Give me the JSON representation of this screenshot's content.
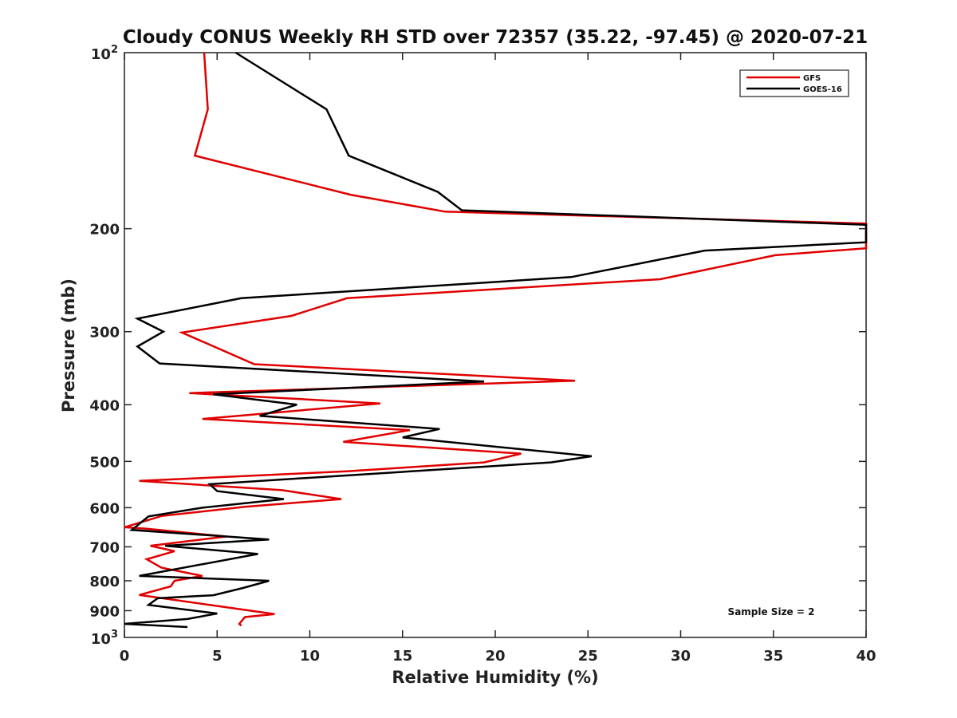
{
  "chart_data": {
    "type": "line",
    "title": "Cloudy CONUS Weekly RH STD over 72357 (35.22, -97.45) @ 2020-07-21",
    "xlabel": "Relative Humidity (%)",
    "ylabel": "Pressure (mb)",
    "xlim": [
      0,
      40
    ],
    "ylim": [
      100,
      1000
    ],
    "y_scale": "log",
    "y_reversed": true,
    "x_ticks": [
      0,
      5,
      10,
      15,
      20,
      25,
      30,
      35,
      40
    ],
    "x_tick_labels": [
      "0",
      "5",
      "10",
      "15",
      "20",
      "25",
      "30",
      "35",
      "40"
    ],
    "y_ticks": [
      200,
      300,
      400,
      500,
      600,
      700,
      800,
      900
    ],
    "y_tick_labels": [
      "200",
      "300",
      "400",
      "500",
      "600",
      "700",
      "800",
      "900"
    ],
    "y_decade_labels": [
      {
        "value": 100,
        "base": "10",
        "exp": "2"
      },
      {
        "value": 1000,
        "base": "10",
        "exp": "3"
      }
    ],
    "grid": false,
    "legend_position": "top-right",
    "annotation": "Sample Size = 2",
    "series": [
      {
        "name": "GFS",
        "color": "#e00000",
        "points": [
          [
            4.3,
            100
          ],
          [
            4.5,
            125
          ],
          [
            3.8,
            150
          ],
          [
            12.2,
            175
          ],
          [
            17.3,
            187
          ],
          [
            40,
            196
          ],
          [
            40,
            216
          ],
          [
            35.1,
            222
          ],
          [
            28.9,
            244
          ],
          [
            12.0,
            263
          ],
          [
            9.0,
            282
          ],
          [
            3.1,
            301
          ],
          [
            7.0,
            341
          ],
          [
            24.3,
            364
          ],
          [
            3.5,
            382
          ],
          [
            13.8,
            398
          ],
          [
            4.2,
            423
          ],
          [
            15.4,
            442
          ],
          [
            11.8,
            463
          ],
          [
            21.4,
            485
          ],
          [
            19.4,
            502
          ],
          [
            12.0,
            520
          ],
          [
            0.8,
            540
          ],
          [
            8.5,
            560
          ],
          [
            11.7,
            580
          ],
          [
            6.5,
            598
          ],
          [
            2.0,
            620
          ],
          [
            0,
            648
          ],
          [
            1.2,
            652
          ],
          [
            5.5,
            672
          ],
          [
            1.4,
            697
          ],
          [
            2.7,
            712
          ],
          [
            1.2,
            735
          ],
          [
            2.0,
            760
          ],
          [
            4.2,
            785
          ],
          [
            2.7,
            800
          ],
          [
            2.5,
            818
          ],
          [
            0.8,
            846
          ],
          [
            8.1,
            912
          ],
          [
            6.5,
            923
          ],
          [
            6.2,
            948
          ],
          [
            6.3,
            955
          ]
        ]
      },
      {
        "name": "GOES-16",
        "color": "#000000",
        "points": [
          [
            6.0,
            100
          ],
          [
            10.9,
            125
          ],
          [
            12.1,
            150
          ],
          [
            16.9,
            173
          ],
          [
            18.2,
            186
          ],
          [
            40,
            197
          ],
          [
            40,
            211
          ],
          [
            31.3,
            218
          ],
          [
            24.1,
            242
          ],
          [
            6.3,
            263
          ],
          [
            0.7,
            285
          ],
          [
            2.1,
            300
          ],
          [
            0.7,
            318
          ],
          [
            1.9,
            340
          ],
          [
            19.4,
            365
          ],
          [
            4.8,
            384
          ],
          [
            9.3,
            400
          ],
          [
            7.3,
            418
          ],
          [
            17.0,
            440
          ],
          [
            15.0,
            455
          ],
          [
            25.2,
            490
          ],
          [
            23.0,
            502
          ],
          [
            4.6,
            547
          ],
          [
            5.0,
            562
          ],
          [
            8.6,
            580
          ],
          [
            4.2,
            600
          ],
          [
            1.3,
            621
          ],
          [
            0.4,
            655
          ],
          [
            7.8,
            680
          ],
          [
            2.2,
            697
          ],
          [
            7.2,
            720
          ],
          [
            0.8,
            785
          ],
          [
            7.8,
            800
          ],
          [
            6.4,
            823
          ],
          [
            4.8,
            847
          ],
          [
            1.8,
            857
          ],
          [
            1.3,
            880
          ],
          [
            5.0,
            910
          ],
          [
            3.4,
            930
          ],
          [
            0,
            948
          ],
          [
            3.4,
            960
          ]
        ]
      }
    ]
  }
}
